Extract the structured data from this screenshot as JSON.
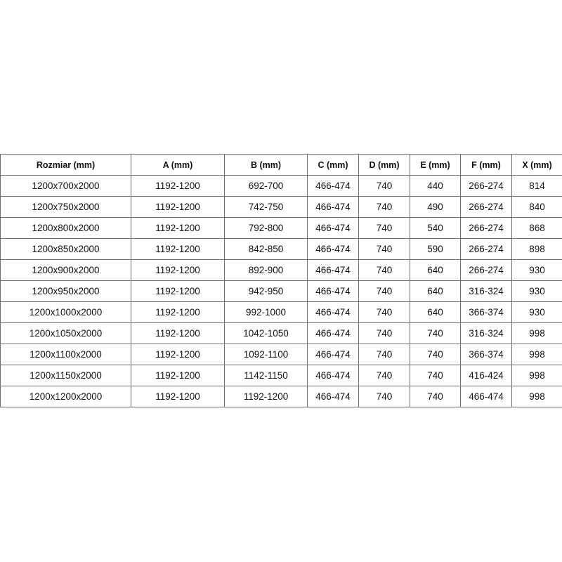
{
  "table": {
    "headers": [
      "Rozmiar (mm)",
      "A (mm)",
      "B (mm)",
      "C (mm)",
      "D (mm)",
      "E (mm)",
      "F (mm)",
      "X (mm)"
    ],
    "rows": [
      [
        "1200x700x2000",
        "1192-1200",
        "692-700",
        "466-474",
        "740",
        "440",
        "266-274",
        "814"
      ],
      [
        "1200x750x2000",
        "1192-1200",
        "742-750",
        "466-474",
        "740",
        "490",
        "266-274",
        "840"
      ],
      [
        "1200x800x2000",
        "1192-1200",
        "792-800",
        "466-474",
        "740",
        "540",
        "266-274",
        "868"
      ],
      [
        "1200x850x2000",
        "1192-1200",
        "842-850",
        "466-474",
        "740",
        "590",
        "266-274",
        "898"
      ],
      [
        "1200x900x2000",
        "1192-1200",
        "892-900",
        "466-474",
        "740",
        "640",
        "266-274",
        "930"
      ],
      [
        "1200x950x2000",
        "1192-1200",
        "942-950",
        "466-474",
        "740",
        "640",
        "316-324",
        "930"
      ],
      [
        "1200x1000x2000",
        "1192-1200",
        "992-1000",
        "466-474",
        "740",
        "640",
        "366-374",
        "930"
      ],
      [
        "1200x1050x2000",
        "1192-1200",
        "1042-1050",
        "466-474",
        "740",
        "740",
        "316-324",
        "998"
      ],
      [
        "1200x1100x2000",
        "1192-1200",
        "1092-1100",
        "466-474",
        "740",
        "740",
        "366-374",
        "998"
      ],
      [
        "1200x1150x2000",
        "1192-1200",
        "1142-1150",
        "466-474",
        "740",
        "740",
        "416-424",
        "998"
      ],
      [
        "1200x1200x2000",
        "1192-1200",
        "1192-1200",
        "466-474",
        "740",
        "740",
        "466-474",
        "998"
      ]
    ]
  }
}
